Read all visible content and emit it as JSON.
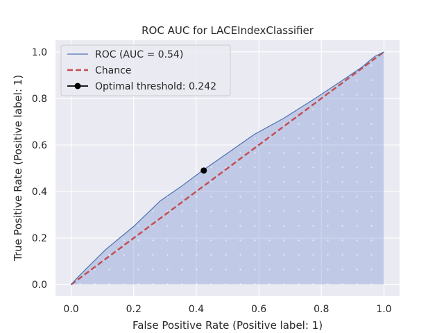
{
  "chart_data": {
    "type": "line",
    "title": "ROC AUC for LACEIndexClassifier",
    "xlabel": "False Positive Rate (Positive label: 1)",
    "ylabel": "True Positive Rate (Positive label: 1)",
    "xlim": [
      -0.05,
      1.05
    ],
    "ylim": [
      -0.05,
      1.05
    ],
    "xticks": [
      0.0,
      0.2,
      0.4,
      0.6,
      0.8,
      1.0
    ],
    "yticks": [
      0.0,
      0.2,
      0.4,
      0.6,
      0.8,
      1.0
    ],
    "xtick_labels": [
      "0.0",
      "0.2",
      "0.4",
      "0.6",
      "0.8",
      "1.0"
    ],
    "ytick_labels": [
      "0.0",
      "0.2",
      "0.4",
      "0.6",
      "0.8",
      "1.0"
    ],
    "grid": true,
    "legend_position": "top-left",
    "roc": {
      "name": "ROC (AUC = 0.54)",
      "color": "#4c72b0",
      "x": [
        0.0,
        0.02,
        0.05,
        0.11,
        0.2,
        0.285,
        0.35,
        0.42,
        0.5,
        0.585,
        0.68,
        0.78,
        0.87,
        0.93,
        0.97,
        1.0
      ],
      "y": [
        0.0,
        0.03,
        0.07,
        0.15,
        0.25,
        0.36,
        0.42,
        0.49,
        0.565,
        0.645,
        0.715,
        0.8,
        0.88,
        0.935,
        0.98,
        1.0
      ]
    },
    "chance": {
      "name": "Chance",
      "color": "#c44e52",
      "x": [
        0.0,
        1.0
      ],
      "y": [
        0.0,
        1.0
      ]
    },
    "optimal": {
      "name": "Optimal threshold: 0.242",
      "color": "#000000",
      "x": 0.424,
      "y": 0.49
    },
    "fill_color": "#8fa5d8",
    "background": "#eaeaf2"
  }
}
